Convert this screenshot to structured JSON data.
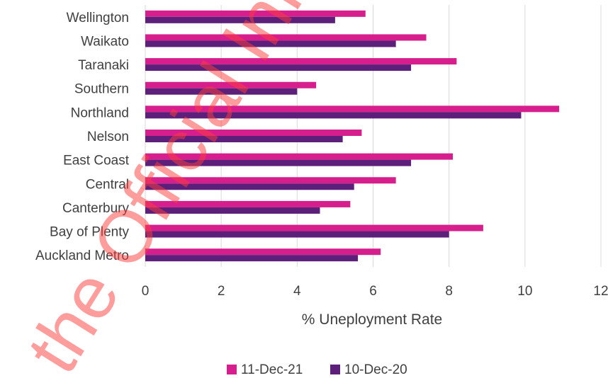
{
  "chart_data": {
    "type": "bar",
    "orientation": "horizontal",
    "categories": [
      "Wellington",
      "Waikato",
      "Taranaki",
      "Southern",
      "Northland",
      "Nelson",
      "East Coast",
      "Central",
      "Canterbury",
      "Bay of Plenty",
      "Auckland Metro"
    ],
    "series": [
      {
        "name": "11-Dec-21",
        "color": "#d61f8c",
        "values": [
          5.8,
          7.4,
          8.2,
          4.5,
          10.9,
          5.7,
          8.1,
          6.6,
          5.4,
          8.9,
          6.2
        ]
      },
      {
        "name": "10-Dec-20",
        "color": "#5c1f7a",
        "values": [
          5.0,
          6.6,
          7.0,
          4.0,
          9.9,
          5.2,
          7.0,
          5.5,
          4.6,
          8.0,
          5.6
        ]
      }
    ],
    "xlabel": "% Uneployment Rate",
    "xlim": [
      0,
      12
    ],
    "xticks": [
      "0",
      "2",
      "4",
      "6",
      "8",
      "10",
      "12"
    ],
    "grid": true,
    "legend_position": "bottom-center"
  },
  "watermark": {
    "text": "the Official Info"
  }
}
